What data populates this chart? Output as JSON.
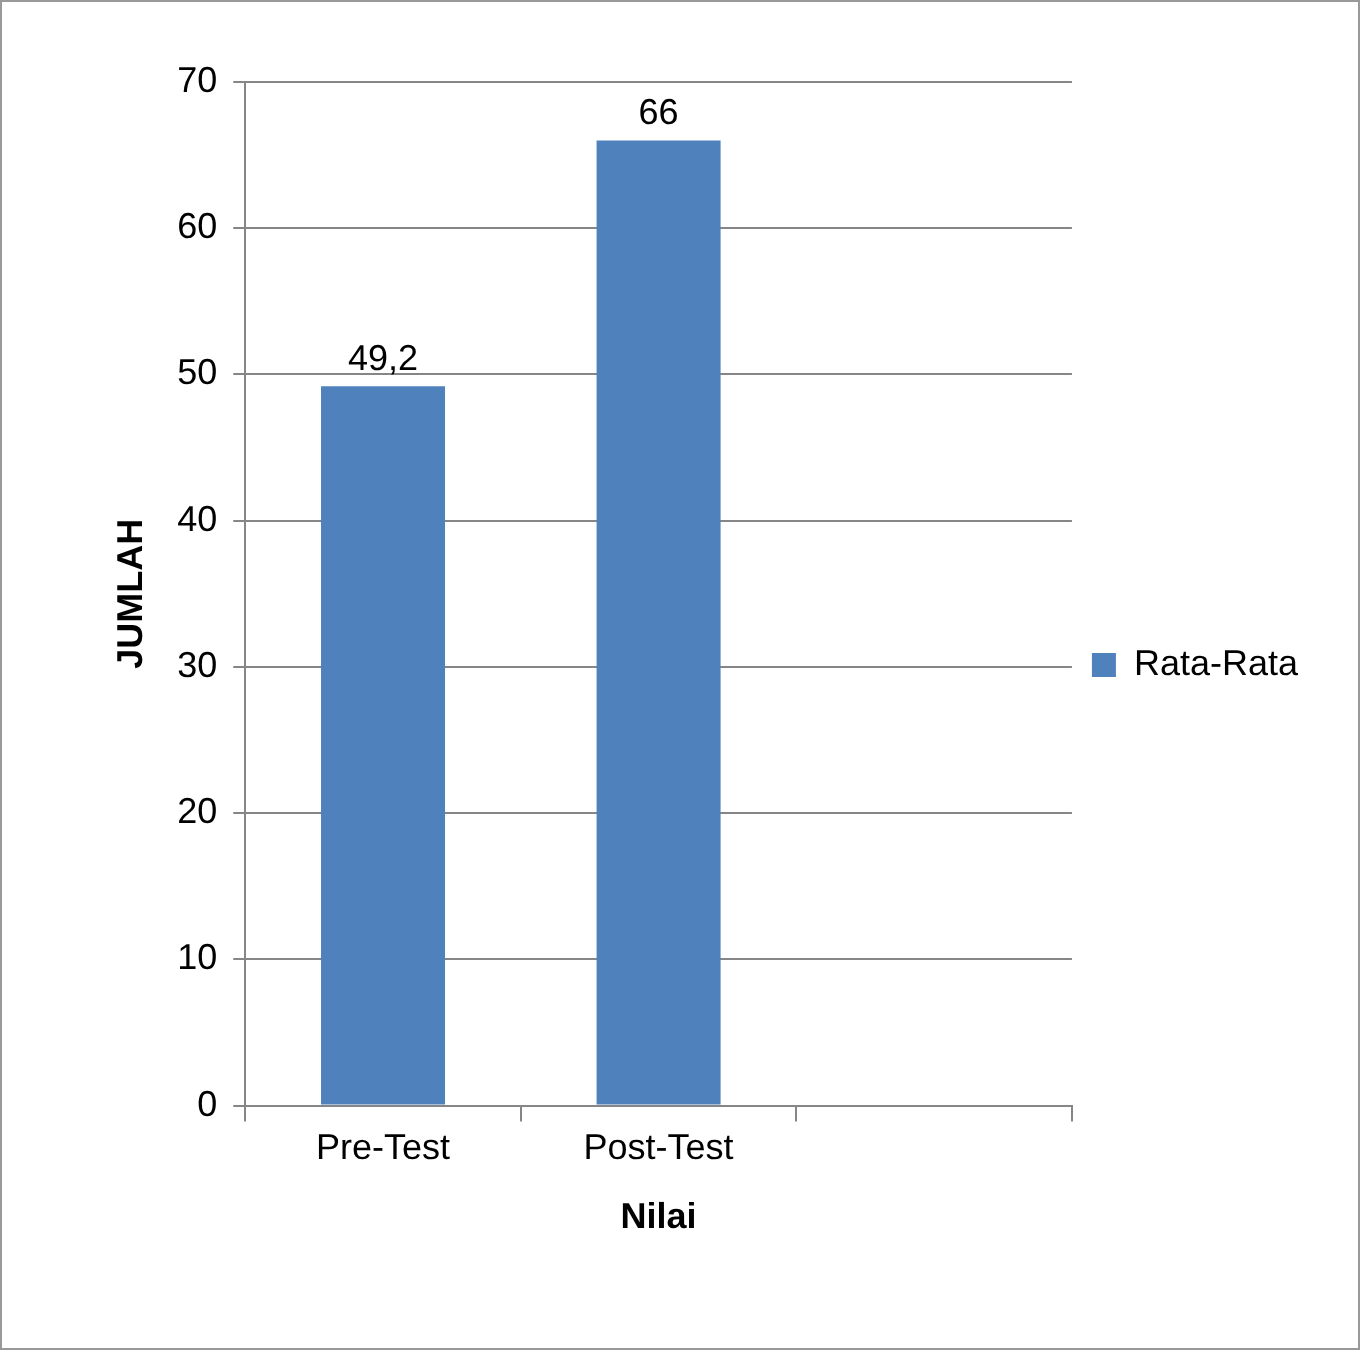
{
  "chart_data": {
    "type": "bar",
    "xlabel": "Nilai",
    "ylabel": "JUMLAH",
    "categories": [
      "Pre-Test",
      "Post-Test",
      null
    ],
    "series": [
      {
        "name": "Rata-Rata",
        "color": "#4f81bd",
        "values": [
          49.2,
          66,
          null
        ],
        "value_labels": [
          "49,2",
          "66",
          null
        ]
      }
    ],
    "ylim": [
      0,
      70
    ],
    "yticks": [
      0,
      10,
      20,
      30,
      40,
      50,
      60,
      70
    ],
    "grid": "y",
    "legend": "right"
  }
}
